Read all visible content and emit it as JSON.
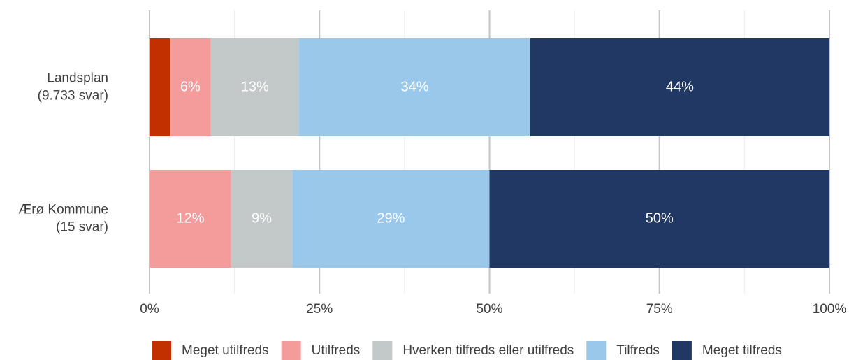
{
  "chart_data": {
    "type": "stacked-barh",
    "categories": [
      [
        "Landsplan",
        "(9.733 svar)"
      ],
      [
        "Ærø Kommune",
        "(15 svar)"
      ]
    ],
    "series": [
      {
        "name": "Meget utilfreds",
        "color": "#c23000",
        "values": [
          3,
          0
        ],
        "value_labels": [
          null,
          null
        ]
      },
      {
        "name": "Utilfreds",
        "color": "#f49c9c",
        "values": [
          6,
          12
        ],
        "value_labels": [
          "6%",
          "12%"
        ]
      },
      {
        "name": "Hverken tilfreds eller utilfreds",
        "color": "#c3c9c8",
        "values": [
          13,
          9
        ],
        "value_labels": [
          "13%",
          "9%"
        ]
      },
      {
        "name": "Tilfreds",
        "color": "#9ac8ea",
        "values": [
          34,
          29
        ],
        "value_labels": [
          "34%",
          "29%"
        ]
      },
      {
        "name": "Meget tilfreds",
        "color": "#213864",
        "values": [
          44,
          50
        ],
        "value_labels": [
          "44%",
          "50%"
        ]
      }
    ],
    "xlim": [
      0,
      100
    ],
    "xticks": [
      {
        "value": 0,
        "label": "0%"
      },
      {
        "value": 25,
        "label": "25%"
      },
      {
        "value": 50,
        "label": "50%"
      },
      {
        "value": 75,
        "label": "75%"
      },
      {
        "value": 100,
        "label": "100%"
      }
    ],
    "xminor": [
      12.5,
      37.5,
      62.5,
      87.5
    ],
    "grid": true,
    "legend": "bottom"
  }
}
